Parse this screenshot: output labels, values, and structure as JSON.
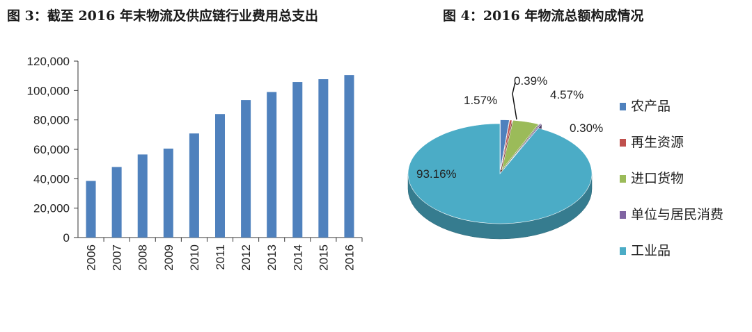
{
  "titles": {
    "left": "图 3：截至 2016 年末物流及供应链行业费用总支出",
    "right": "图 4：2016 年物流总额构成情况"
  },
  "chart_data": [
    {
      "type": "bar",
      "categories": [
        "2006",
        "2007",
        "2008",
        "2009",
        "2010",
        "2011",
        "2012",
        "2013",
        "2014",
        "2015",
        "2016"
      ],
      "values": [
        38500,
        48000,
        56500,
        60500,
        70800,
        84000,
        93500,
        99000,
        105800,
        107700,
        110500
      ],
      "ylim": [
        0,
        120000
      ],
      "yticks": [
        0,
        20000,
        40000,
        60000,
        80000,
        100000,
        120000
      ],
      "ytick_labels": [
        "0",
        "20,000",
        "40,000",
        "60,000",
        "80,000",
        "100,000",
        "120,000"
      ],
      "grid": false,
      "bar_color": "#4f81bd"
    },
    {
      "type": "pie",
      "slices": [
        {
          "name": "农产品",
          "value": 1.57,
          "label": "1.57%",
          "color": "#4f81bd"
        },
        {
          "name": "再生资源",
          "value": 0.39,
          "label": "0.39%",
          "color": "#c0504d"
        },
        {
          "name": "进口货物",
          "value": 4.57,
          "label": "4.57%",
          "color": "#9bbb59"
        },
        {
          "name": "单位与居民消费",
          "value": 0.3,
          "label": "0.30%",
          "color": "#8064a2"
        },
        {
          "name": "工业品",
          "value": 93.16,
          "label": "93.16%",
          "color": "#4bacc6"
        }
      ],
      "style": "3d-exploded",
      "legend_position": "right"
    }
  ]
}
